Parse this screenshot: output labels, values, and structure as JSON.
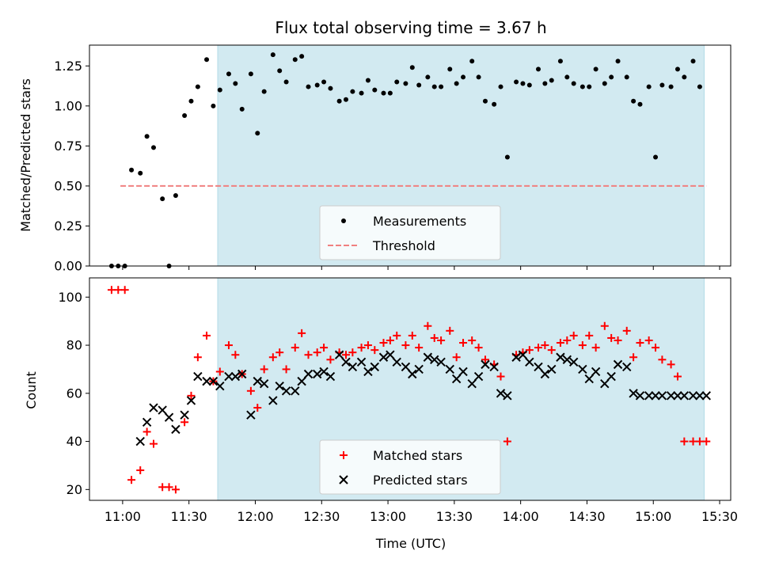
{
  "chart_data": [
    {
      "type": "scatter",
      "title": "Flux total observing time = 3.67 h",
      "ylabel": "Matched/Predicted stars",
      "xlabel": "",
      "ylim": [
        0,
        1.38
      ],
      "yticks": [
        "0.00",
        "0.25",
        "0.50",
        "0.75",
        "1.00",
        "1.25"
      ],
      "ytick_values": [
        0,
        0.25,
        0.5,
        0.75,
        1.0,
        1.25
      ],
      "shaded_span": [
        "11:43",
        "15:23"
      ],
      "shade_color": "#add8e6",
      "legend_position": "lower-center",
      "series": [
        {
          "name": "Measurements",
          "marker": "dot",
          "color": "#000000",
          "x": [
            "10:55",
            "10:58",
            "11:01",
            "11:04",
            "11:08",
            "11:11",
            "11:14",
            "11:18",
            "11:21",
            "11:24",
            "11:28",
            "11:31",
            "11:34",
            "11:38",
            "11:41",
            "11:44",
            "11:48",
            "11:51",
            "11:54",
            "11:58",
            "12:01",
            "12:04",
            "12:08",
            "12:11",
            "12:14",
            "12:18",
            "12:21",
            "12:24",
            "12:28",
            "12:31",
            "12:34",
            "12:38",
            "12:41",
            "12:44",
            "12:48",
            "12:51",
            "12:54",
            "12:58",
            "13:01",
            "13:04",
            "13:08",
            "13:11",
            "13:14",
            "13:18",
            "13:21",
            "13:24",
            "13:28",
            "13:31",
            "13:34",
            "13:38",
            "13:41",
            "13:44",
            "13:48",
            "13:51",
            "13:54",
            "13:58",
            "14:01",
            "14:04",
            "14:08",
            "14:11",
            "14:14",
            "14:18",
            "14:21",
            "14:24",
            "14:28",
            "14:31",
            "14:34",
            "14:38",
            "14:41",
            "14:44",
            "14:48",
            "14:51",
            "14:54",
            "14:58",
            "15:01",
            "15:04",
            "15:08",
            "15:11",
            "15:14",
            "15:18",
            "15:21"
          ],
          "y": [
            0.0,
            0.0,
            0.0,
            0.6,
            0.58,
            0.81,
            0.74,
            0.42,
            0.0,
            0.44,
            0.94,
            1.03,
            1.12,
            1.29,
            1.0,
            1.1,
            1.2,
            1.14,
            0.98,
            1.2,
            0.83,
            1.09,
            1.32,
            1.22,
            1.15,
            1.29,
            1.31,
            1.12,
            1.13,
            1.15,
            1.11,
            1.03,
            1.04,
            1.09,
            1.08,
            1.16,
            1.1,
            1.08,
            1.08,
            1.15,
            1.14,
            1.24,
            1.13,
            1.18,
            1.12,
            1.12,
            1.23,
            1.14,
            1.18,
            1.28,
            1.18,
            1.03,
            1.01,
            1.12,
            0.68,
            1.15,
            1.14,
            1.13,
            1.23,
            1.14,
            1.16,
            1.28,
            1.18,
            1.14,
            1.12,
            1.12,
            1.23,
            1.14,
            1.18,
            1.28,
            1.18,
            1.03,
            1.01,
            1.12,
            0.68,
            1.13,
            1.12,
            1.23,
            1.18,
            1.28,
            1.12
          ]
        },
        {
          "name": "Threshold",
          "marker": "dashed-line",
          "color": "#f08080",
          "x": [
            "10:59",
            "15:24"
          ],
          "y": [
            0.5,
            0.5
          ]
        }
      ]
    },
    {
      "type": "scatter",
      "title": "",
      "ylabel": "Count",
      "xlabel": "Time (UTC)",
      "ylim": [
        15.5,
        108
      ],
      "yticks": [
        "20",
        "40",
        "60",
        "80",
        "100"
      ],
      "ytick_values": [
        20,
        40,
        60,
        80,
        100
      ],
      "xticks": [
        "11:00",
        "11:30",
        "12:00",
        "12:30",
        "13:00",
        "13:30",
        "14:00",
        "14:30",
        "15:00",
        "15:30"
      ],
      "xlim": [
        "10:45",
        "15:35"
      ],
      "shaded_span": [
        "11:43",
        "15:23"
      ],
      "shade_color": "#add8e6",
      "legend_position": "lower-center",
      "series": [
        {
          "name": "Matched stars",
          "marker": "plus",
          "color": "#ff0000",
          "x": [
            "10:55",
            "10:58",
            "11:01",
            "11:04",
            "11:08",
            "11:11",
            "11:14",
            "11:18",
            "11:21",
            "11:24",
            "11:28",
            "11:31",
            "11:34",
            "11:38",
            "11:41",
            "11:44",
            "11:48",
            "11:51",
            "11:54",
            "11:58",
            "12:01",
            "12:04",
            "12:08",
            "12:11",
            "12:14",
            "12:18",
            "12:21",
            "12:24",
            "12:28",
            "12:31",
            "12:34",
            "12:38",
            "12:41",
            "12:44",
            "12:48",
            "12:51",
            "12:54",
            "12:58",
            "13:01",
            "13:04",
            "13:08",
            "13:11",
            "13:14",
            "13:18",
            "13:21",
            "13:24",
            "13:28",
            "13:31",
            "13:34",
            "13:38",
            "13:41",
            "13:44",
            "13:48",
            "13:51",
            "13:54",
            "13:58",
            "14:01",
            "14:04",
            "14:08",
            "14:11",
            "14:14",
            "14:18",
            "14:21",
            "14:24",
            "14:28",
            "14:31",
            "14:34",
            "14:38",
            "14:41",
            "14:44",
            "14:48",
            "14:51",
            "14:54",
            "14:58",
            "15:01",
            "15:04",
            "15:08",
            "15:11",
            "15:14",
            "15:18",
            "15:21",
            "15:24"
          ],
          "y": [
            103,
            103,
            103,
            24,
            28,
            44,
            39,
            21,
            21,
            20,
            48,
            59,
            75,
            84,
            65,
            69,
            80,
            76,
            68,
            61,
            54,
            70,
            75,
            77,
            70,
            79,
            85,
            76,
            77,
            79,
            74,
            77,
            76,
            77,
            79,
            80,
            78,
            81,
            82,
            84,
            80,
            84,
            79,
            88,
            83,
            82,
            86,
            75,
            81,
            82,
            79,
            74,
            72,
            67,
            40,
            76,
            77,
            78,
            79,
            80,
            78,
            81,
            82,
            84,
            80,
            84,
            79,
            88,
            83,
            82,
            86,
            75,
            81,
            82,
            79,
            74,
            72,
            67,
            40,
            40,
            40,
            40
          ]
        },
        {
          "name": "Predicted stars",
          "marker": "x",
          "color": "#000000",
          "x": [
            "11:08",
            "11:11",
            "11:14",
            "11:18",
            "11:21",
            "11:24",
            "11:28",
            "11:31",
            "11:34",
            "11:38",
            "11:41",
            "11:44",
            "11:48",
            "11:51",
            "11:54",
            "11:58",
            "12:01",
            "12:04",
            "12:08",
            "12:11",
            "12:14",
            "12:18",
            "12:21",
            "12:24",
            "12:28",
            "12:31",
            "12:34",
            "12:38",
            "12:41",
            "12:44",
            "12:48",
            "12:51",
            "12:54",
            "12:58",
            "13:01",
            "13:04",
            "13:08",
            "13:11",
            "13:14",
            "13:18",
            "13:21",
            "13:24",
            "13:28",
            "13:31",
            "13:34",
            "13:38",
            "13:41",
            "13:44",
            "13:48",
            "13:51",
            "13:54",
            "13:58",
            "14:01",
            "14:04",
            "14:08",
            "14:11",
            "14:14",
            "14:18",
            "14:21",
            "14:24",
            "14:28",
            "14:31",
            "14:34",
            "14:38",
            "14:41",
            "14:44",
            "14:48",
            "14:51",
            "14:54",
            "14:58",
            "15:01",
            "15:04",
            "15:08",
            "15:11",
            "15:14",
            "15:18",
            "15:21",
            "15:24"
          ],
          "y": [
            40,
            48,
            54,
            53,
            50,
            45,
            51,
            57,
            67,
            65,
            65,
            63,
            67,
            67,
            68,
            51,
            65,
            64,
            57,
            63,
            61,
            61,
            65,
            68,
            68,
            69,
            67,
            76,
            73,
            71,
            73,
            69,
            71,
            75,
            76,
            73,
            71,
            68,
            70,
            75,
            74,
            73,
            70,
            66,
            69,
            64,
            67,
            72,
            71,
            60,
            59,
            75,
            76,
            73,
            71,
            68,
            70,
            75,
            74,
            73,
            70,
            66,
            69,
            64,
            67,
            72,
            71,
            60,
            59,
            59,
            59,
            59,
            59,
            59,
            59,
            59,
            59,
            59
          ]
        }
      ]
    }
  ]
}
